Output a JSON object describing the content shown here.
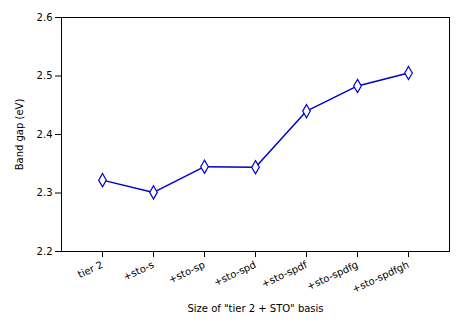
{
  "chart_data": {
    "type": "line",
    "categories": [
      "tier 2",
      "+sto-s",
      "+sto-sp",
      "+sto-spd",
      "+sto-spdf",
      "+sto-spdfg",
      "+sto-spdfgh"
    ],
    "values": [
      2.322,
      2.301,
      2.345,
      2.344,
      2.44,
      2.483,
      2.505
    ],
    "color": "#0000cc",
    "marker": "diamond",
    "xlabel": "Size of \"tier 2 + STO\" basis",
    "ylabel": "Band gap (eV)",
    "ylim": [
      2.2,
      2.6
    ],
    "yticks": [
      2.2,
      2.3,
      2.4,
      2.5,
      2.6
    ],
    "grid": false
  }
}
